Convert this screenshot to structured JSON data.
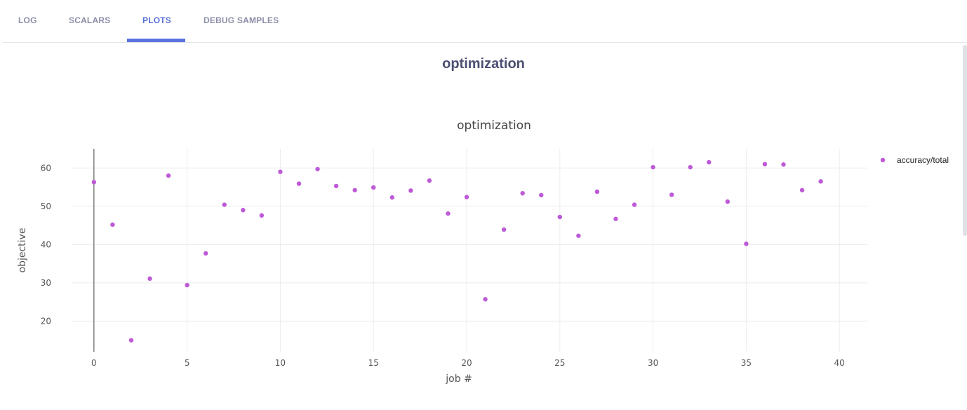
{
  "tabs": [
    {
      "label": "LOG",
      "active": false
    },
    {
      "label": "SCALARS",
      "active": false
    },
    {
      "label": "PLOTS",
      "active": true
    },
    {
      "label": "DEBUG SAMPLES",
      "active": false
    }
  ],
  "section_title": "optimization",
  "colors": {
    "accent": "#5b72e0",
    "marker": "#bd5ad6",
    "grid": "#ececec",
    "text": "#555555"
  },
  "chart_data": {
    "type": "scatter",
    "title": "optimization",
    "xlabel": "job #",
    "ylabel": "objective",
    "xlim": [
      -1.2,
      41.5
    ],
    "ylim": [
      12,
      65
    ],
    "xticks": [
      0,
      5,
      10,
      15,
      20,
      25,
      30,
      35,
      40
    ],
    "yticks": [
      20,
      30,
      40,
      50,
      60
    ],
    "grid": true,
    "legend": "top-right",
    "series": [
      {
        "name": "accuracy/total",
        "x": [
          0,
          1,
          2,
          3,
          4,
          5,
          6,
          7,
          8,
          9,
          10,
          11,
          12,
          13,
          14,
          15,
          16,
          17,
          18,
          19,
          20,
          21,
          22,
          23,
          24,
          25,
          26,
          27,
          28,
          29,
          30,
          31,
          32,
          33,
          34,
          35,
          36,
          37,
          38,
          39
        ],
        "y": [
          56.3,
          45.2,
          15.0,
          31.1,
          58.0,
          29.4,
          37.7,
          50.4,
          49.0,
          47.6,
          59.0,
          55.9,
          59.7,
          55.3,
          54.2,
          54.9,
          52.3,
          54.1,
          56.7,
          48.1,
          52.4,
          25.7,
          43.9,
          53.4,
          52.9,
          47.2,
          42.3,
          53.8,
          46.7,
          50.4,
          60.2,
          53.0,
          60.2,
          61.5,
          51.2,
          40.2,
          61.0,
          60.9,
          54.2,
          56.5
        ]
      }
    ]
  }
}
